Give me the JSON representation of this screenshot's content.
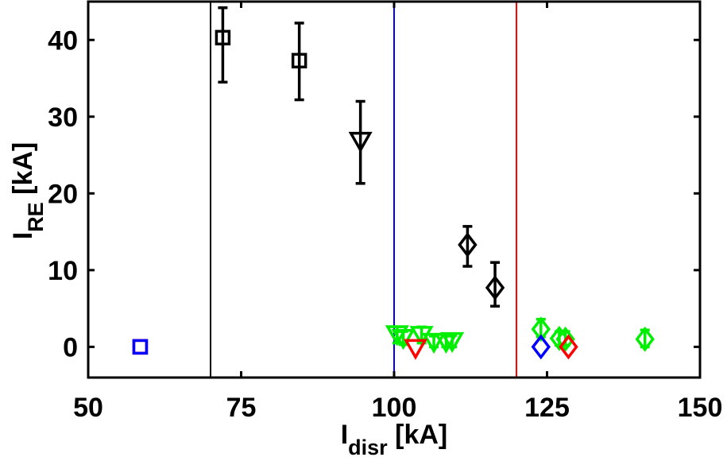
{
  "chart_data": {
    "type": "scatter",
    "xlabel": "I",
    "xlabel_sub": "disr",
    "xlabel_unit": " [kA]",
    "ylabel": "I",
    "ylabel_sub": "RE",
    "ylabel_unit": " [kA]",
    "xlim": [
      50,
      150
    ],
    "ylim": [
      -4,
      45
    ],
    "xticks": [
      50,
      75,
      100,
      125,
      150
    ],
    "yticks": [
      0,
      10,
      20,
      30,
      40
    ],
    "grid": false,
    "legend": "none",
    "vlines": [
      {
        "x": 70,
        "color": "#000000"
      },
      {
        "x": 100,
        "color": "#0000ff"
      },
      {
        "x": 120,
        "color": "#ff0000"
      }
    ],
    "series": [
      {
        "color": "#000000",
        "points": [
          {
            "x": 72,
            "y": 40.3,
            "marker": "square",
            "err": [
              34.5,
              44.2
            ]
          },
          {
            "x": 84.5,
            "y": 37.3,
            "marker": "square",
            "err": [
              32.2,
              42.2
            ]
          },
          {
            "x": 94.5,
            "y": 26.8,
            "marker": "triangle-down",
            "err": [
              21.3,
              32.0
            ]
          },
          {
            "x": 112,
            "y": 13.3,
            "marker": "diamond",
            "err": [
              10.5,
              15.7
            ]
          },
          {
            "x": 116.5,
            "y": 7.7,
            "marker": "diamond",
            "err": [
              5.3,
              11.0
            ]
          }
        ]
      },
      {
        "color": "#00ee00",
        "points": [
          {
            "x": 100.5,
            "y": 1.6,
            "marker": "triangle-down",
            "err": [
              0.5,
              2.6
            ]
          },
          {
            "x": 101.5,
            "y": 1.1,
            "marker": "triangle-down",
            "err": [
              0.3,
              2.0
            ]
          },
          {
            "x": 104.5,
            "y": 1.5,
            "marker": "triangle-down",
            "err": [
              0.5,
              2.6
            ]
          },
          {
            "x": 106.5,
            "y": 0.6,
            "marker": "triangle-down",
            "err": [
              0,
              1.4
            ]
          },
          {
            "x": 108.5,
            "y": 0.6,
            "marker": "triangle-down",
            "err": [
              0,
              1.4
            ]
          },
          {
            "x": 109.5,
            "y": 0.7,
            "marker": "triangle-down",
            "err": [
              0,
              1.5
            ]
          },
          {
            "x": 124,
            "y": 2.3,
            "marker": "diamond",
            "err": [
              1.3,
              3.6
            ]
          },
          {
            "x": 127,
            "y": 1.1,
            "marker": "diamond",
            "err": [
              0.2,
              2.0
            ]
          },
          {
            "x": 128,
            "y": 1.0,
            "marker": "diamond",
            "err": [
              0.2,
              2.0
            ]
          },
          {
            "x": 141,
            "y": 1.0,
            "marker": "diamond",
            "err": [
              0,
              2.2
            ]
          }
        ]
      },
      {
        "color": "#ff0000",
        "points": [
          {
            "x": 58.5,
            "y": 0,
            "marker": "square"
          },
          {
            "x": 103.5,
            "y": -0.2,
            "marker": "triangle-down"
          },
          {
            "x": 128.5,
            "y": 0,
            "marker": "diamond"
          }
        ]
      },
      {
        "color": "#0000ff",
        "points": [
          {
            "x": 58.5,
            "y": 0,
            "marker": "square"
          },
          {
            "x": 124,
            "y": 0,
            "marker": "diamond"
          }
        ]
      }
    ]
  }
}
